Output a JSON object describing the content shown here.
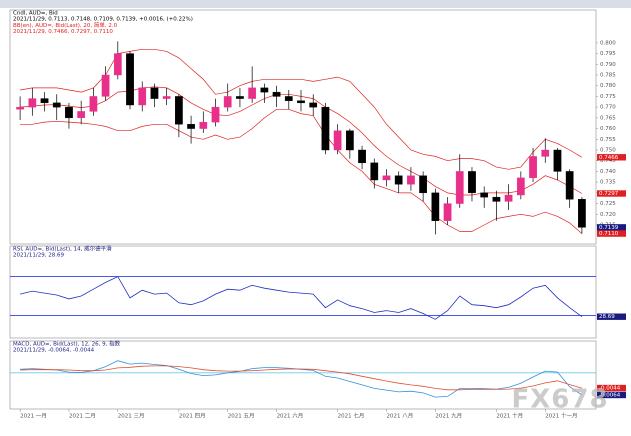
{
  "watermark": "FX678",
  "chart_data": [
    {
      "type": "candlestick",
      "header": [
        {
          "text": "Cndl, AUD=, Bid",
          "color": "#000000"
        },
        {
          "text": "2021/11/29, 0.7113, 0.7148, 0.7109, 0.7139, +0.0016, (+0.22%)",
          "color": "#000000"
        },
        {
          "text": "BB(en), AUD=, Bid(Last), 20, 简单, 2.0",
          "color": "#e02020"
        },
        {
          "text": "2021/11/29, 0.7466, 0.7297, 0.7110",
          "color": "#e02020"
        }
      ],
      "categories": [
        "2021 一月",
        null,
        null,
        null,
        "2021 二月",
        null,
        null,
        null,
        "2021 三月",
        null,
        null,
        null,
        null,
        "2021 四月",
        null,
        null,
        null,
        "2021 五月",
        null,
        null,
        null,
        "2021 六月",
        null,
        null,
        null,
        null,
        "2021 七月",
        null,
        null,
        null,
        "2021 八月",
        null,
        null,
        null,
        "2021 九月",
        null,
        null,
        null,
        null,
        "2021 十月",
        null,
        null,
        null,
        "2021 十一月",
        null,
        null,
        null
      ],
      "open": [
        0.769,
        0.77,
        0.774,
        0.772,
        0.77,
        0.765,
        0.768,
        0.775,
        0.785,
        0.795,
        0.771,
        0.779,
        0.774,
        0.775,
        0.762,
        0.76,
        0.763,
        0.77,
        0.775,
        0.774,
        0.779,
        0.777,
        0.775,
        0.773,
        0.772,
        0.77,
        0.75,
        0.759,
        0.75,
        0.744,
        0.736,
        0.738,
        0.734,
        0.738,
        0.73,
        0.717,
        0.725,
        0.74,
        0.73,
        0.728,
        0.726,
        0.729,
        0.737,
        0.747,
        0.75,
        0.74,
        0.727
      ],
      "high": [
        0.775,
        0.779,
        0.777,
        0.776,
        0.772,
        0.773,
        0.779,
        0.789,
        0.8007,
        0.796,
        0.782,
        0.781,
        0.779,
        0.776,
        0.766,
        0.768,
        0.774,
        0.781,
        0.779,
        0.789,
        0.781,
        0.78,
        0.778,
        0.778,
        0.776,
        0.772,
        0.762,
        0.76,
        0.752,
        0.746,
        0.741,
        0.74,
        0.742,
        0.74,
        0.732,
        0.728,
        0.748,
        0.742,
        0.733,
        0.731,
        0.734,
        0.74,
        0.751,
        0.7555,
        0.751,
        0.741,
        0.728
      ],
      "low": [
        0.764,
        0.766,
        0.768,
        0.764,
        0.76,
        0.762,
        0.766,
        0.773,
        0.783,
        0.769,
        0.768,
        0.77,
        0.771,
        0.756,
        0.753,
        0.758,
        0.761,
        0.768,
        0.77,
        0.772,
        0.772,
        0.77,
        0.769,
        0.768,
        0.766,
        0.748,
        0.748,
        0.746,
        0.741,
        0.732,
        0.733,
        0.73,
        0.731,
        0.726,
        0.7106,
        0.715,
        0.723,
        0.726,
        0.723,
        0.717,
        0.722,
        0.727,
        0.735,
        0.744,
        0.736,
        0.723,
        0.711
      ],
      "close": [
        0.77,
        0.774,
        0.772,
        0.77,
        0.765,
        0.768,
        0.775,
        0.785,
        0.795,
        0.771,
        0.779,
        0.774,
        0.775,
        0.762,
        0.76,
        0.763,
        0.77,
        0.775,
        0.774,
        0.779,
        0.777,
        0.775,
        0.773,
        0.772,
        0.77,
        0.75,
        0.759,
        0.75,
        0.744,
        0.736,
        0.738,
        0.734,
        0.738,
        0.73,
        0.717,
        0.725,
        0.74,
        0.73,
        0.728,
        0.726,
        0.729,
        0.737,
        0.747,
        0.75,
        0.74,
        0.727,
        0.7139
      ],
      "up_color": "#e8308a",
      "down_color": "#000000",
      "bands": {
        "color": "#e02020",
        "upper": [
          0.778,
          0.779,
          0.779,
          0.779,
          0.778,
          0.777,
          0.779,
          0.785,
          0.795,
          0.796,
          0.797,
          0.797,
          0.796,
          0.793,
          0.788,
          0.783,
          0.776,
          0.777,
          0.78,
          0.782,
          0.783,
          0.783,
          0.783,
          0.783,
          0.782,
          0.783,
          0.784,
          0.782,
          0.776,
          0.77,
          0.762,
          0.756,
          0.75,
          0.748,
          0.747,
          0.745,
          0.746,
          0.746,
          0.745,
          0.742,
          0.741,
          0.742,
          0.749,
          0.755,
          0.753,
          0.75,
          0.7466
        ],
        "middle": [
          0.77,
          0.7705,
          0.771,
          0.7712,
          0.7705,
          0.7698,
          0.7705,
          0.773,
          0.777,
          0.7775,
          0.779,
          0.7795,
          0.779,
          0.776,
          0.772,
          0.769,
          0.7665,
          0.766,
          0.768,
          0.771,
          0.774,
          0.776,
          0.776,
          0.775,
          0.774,
          0.77,
          0.767,
          0.763,
          0.758,
          0.752,
          0.747,
          0.743,
          0.74,
          0.737,
          0.733,
          0.73,
          0.729,
          0.729,
          0.73,
          0.73,
          0.73,
          0.731,
          0.734,
          0.738,
          0.736,
          0.733,
          0.7297
        ],
        "lower": [
          0.762,
          0.762,
          0.763,
          0.7634,
          0.763,
          0.7626,
          0.762,
          0.761,
          0.759,
          0.759,
          0.761,
          0.762,
          0.762,
          0.759,
          0.756,
          0.755,
          0.757,
          0.755,
          0.756,
          0.76,
          0.765,
          0.769,
          0.769,
          0.767,
          0.766,
          0.757,
          0.75,
          0.744,
          0.74,
          0.734,
          0.732,
          0.73,
          0.73,
          0.726,
          0.719,
          0.715,
          0.712,
          0.712,
          0.715,
          0.718,
          0.719,
          0.72,
          0.719,
          0.721,
          0.719,
          0.716,
          0.711
        ]
      },
      "ylim": [
        0.708,
        0.806
      ],
      "yticks": [
        0.715,
        {
          "value": 0.72,
          "label": "0.720"
        },
        0.725,
        {
          "value": 0.73,
          "label": "0.730"
        },
        0.735,
        {
          "value": 0.74,
          "label": "0.740"
        },
        0.745,
        {
          "value": 0.75,
          "label": "0.750"
        },
        0.755,
        {
          "value": 0.76,
          "label": "0.760"
        },
        0.765,
        {
          "value": 0.77,
          "label": "0.770"
        },
        0.775,
        {
          "value": 0.78,
          "label": "0.780"
        },
        0.785,
        {
          "value": 0.79,
          "label": "0.790"
        },
        0.795,
        {
          "value": 0.8,
          "label": "0.800"
        }
      ],
      "price_tags": [
        {
          "value": 0.7466,
          "label": "0.7466",
          "color": "#e02020"
        },
        {
          "value": 0.7297,
          "label": "0.7297",
          "color": "#e02020"
        },
        {
          "value": 0.7139,
          "label": "0.7139",
          "color": "#1a1a80"
        },
        {
          "value": 0.711,
          "label": "0.7110",
          "color": "#e02020"
        }
      ]
    },
    {
      "type": "line",
      "header": [
        {
          "text": "RSI, AUD=, Bid(Last), 14, 威尔德平滑",
          "color": "#1a1a80"
        },
        {
          "text": "2021/11/29, 28.69",
          "color": "#1a1a80"
        }
      ],
      "series": [
        {
          "color": "#2030c0",
          "values": [
            52,
            55,
            53,
            51,
            47,
            50,
            57,
            64,
            70,
            48,
            56,
            52,
            53,
            43,
            41,
            45,
            52,
            57,
            56,
            61,
            58,
            56,
            54,
            53,
            52,
            38,
            46,
            40,
            37,
            33,
            35,
            33,
            37,
            32,
            26,
            35,
            50,
            41,
            40,
            38,
            41,
            49,
            58,
            61,
            48,
            38,
            28.69
          ]
        }
      ],
      "ylim": [
        15,
        85
      ],
      "levels": [
        70,
        30
      ],
      "level_color": "#3040e0",
      "price_tags": [
        {
          "value": 28.69,
          "label": "28.69",
          "color": "#1a1a80"
        }
      ]
    },
    {
      "type": "line",
      "header": [
        {
          "text": "MACD, AUD=, Bid(Last), 12, 26, 9, 指数",
          "color": "#1a1a80"
        },
        {
          "text": "2021/11/29, -0.0064, -0.0044",
          "color": "#1a1a80"
        }
      ],
      "series": [
        {
          "color": "#3090e0",
          "values": [
            0.001,
            0.0012,
            0.001,
            0.0008,
            0.0002,
            0.0001,
            0.0006,
            0.0018,
            0.0035,
            0.0025,
            0.0028,
            0.0024,
            0.0021,
            0.001,
            -0.0002,
            -0.0008,
            -0.0006,
            0.0,
            0.0004,
            0.0012,
            0.0015,
            0.0015,
            0.0013,
            0.001,
            0.0007,
            -0.001,
            -0.0015,
            -0.0025,
            -0.0035,
            -0.0045,
            -0.005,
            -0.0055,
            -0.0053,
            -0.0058,
            -0.007,
            -0.0068,
            -0.0045,
            -0.0045,
            -0.0046,
            -0.0047,
            -0.0042,
            -0.003,
            -0.0012,
            0.0005,
            0.0002,
            -0.004,
            -0.0064
          ]
        },
        {
          "color": "#e05030",
          "values": [
            0.0008,
            0.0009,
            0.0009,
            0.0009,
            0.0008,
            0.0006,
            0.0006,
            0.0008,
            0.0014,
            0.0016,
            0.0019,
            0.002,
            0.002,
            0.0018,
            0.0014,
            0.0009,
            0.0006,
            0.0005,
            0.0005,
            0.0006,
            0.0008,
            0.001,
            0.0011,
            0.0011,
            0.001,
            0.0006,
            0.0002,
            -0.0003,
            -0.001,
            -0.0017,
            -0.0024,
            -0.003,
            -0.0035,
            -0.0039,
            -0.0045,
            -0.0049,
            -0.0049,
            -0.0048,
            -0.0048,
            -0.0048,
            -0.0047,
            -0.0044,
            -0.0038,
            -0.0029,
            -0.0023,
            -0.0034,
            -0.0044
          ]
        }
      ],
      "ylim": [
        -0.009,
        0.006
      ],
      "levels": [
        0
      ],
      "level_color": "#70c8e8",
      "price_tags": [
        {
          "value": -0.0044,
          "label": "-0.0044",
          "color": "#e02020"
        },
        {
          "value": -0.0064,
          "label": "-0.0064",
          "color": "#1a1a80"
        }
      ]
    }
  ]
}
